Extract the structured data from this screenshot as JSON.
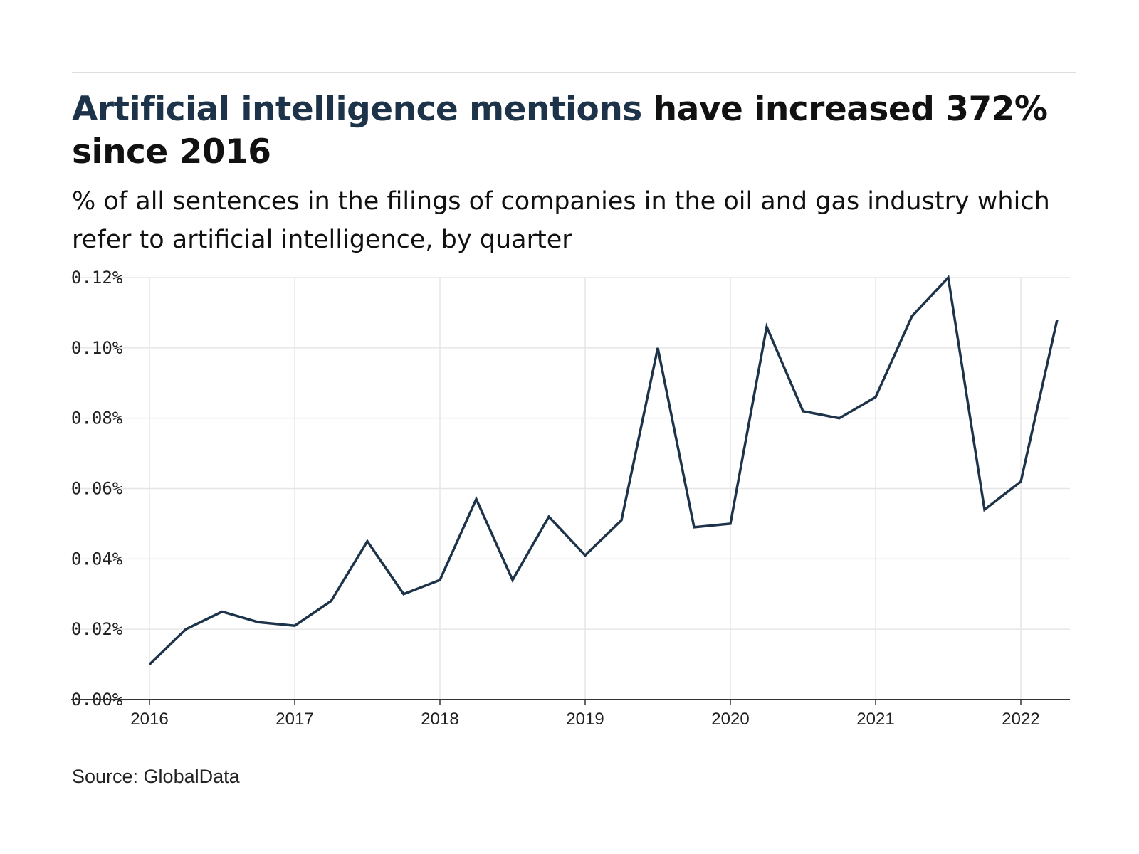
{
  "title": {
    "highlight": "Artificial intelligence mentions",
    "rest": " have increased 372% since 2016"
  },
  "subtitle": "% of all sentences in the filings of companies in the oil and gas industry which refer to artificial intelligence, by quarter",
  "source": "Source: GlobalData",
  "colors": {
    "line": "#1d3349",
    "grid": "#e6e6e6",
    "axis": "#333333",
    "highlight": "#1d3349"
  },
  "chart_data": {
    "type": "line",
    "title": "Artificial intelligence mentions have increased 372% since 2016",
    "xlabel": "",
    "ylabel": "",
    "x_ticks": [
      "2016",
      "2017",
      "2018",
      "2019",
      "2020",
      "2021",
      "2022"
    ],
    "y_ticks": [
      "0.00%",
      "0.02%",
      "0.04%",
      "0.06%",
      "0.08%",
      "0.10%",
      "0.12%"
    ],
    "xlim": [
      "2016-Q1",
      "2022-Q3"
    ],
    "ylim": [
      0,
      0.12
    ],
    "grid": true,
    "series": [
      {
        "x": [
          "2016-Q1",
          "2016-Q2",
          "2016-Q3",
          "2016-Q4",
          "2017-Q1",
          "2017-Q2",
          "2017-Q3",
          "2017-Q4",
          "2018-Q1",
          "2018-Q2",
          "2018-Q3",
          "2018-Q4",
          "2019-Q1",
          "2019-Q2",
          "2019-Q3",
          "2019-Q4",
          "2020-Q1",
          "2020-Q2",
          "2020-Q3",
          "2020-Q4",
          "2021-Q1",
          "2021-Q2",
          "2021-Q3",
          "2021-Q4",
          "2022-Q1",
          "2022-Q2"
        ],
        "values": [
          0.01,
          0.02,
          0.025,
          0.022,
          0.021,
          0.028,
          0.045,
          0.03,
          0.034,
          0.057,
          0.034,
          0.052,
          0.041,
          0.051,
          0.1,
          0.049,
          0.05,
          0.106,
          0.082,
          0.08,
          0.086,
          0.109,
          0.12,
          0.054,
          0.062,
          0.108
        ]
      }
    ]
  }
}
